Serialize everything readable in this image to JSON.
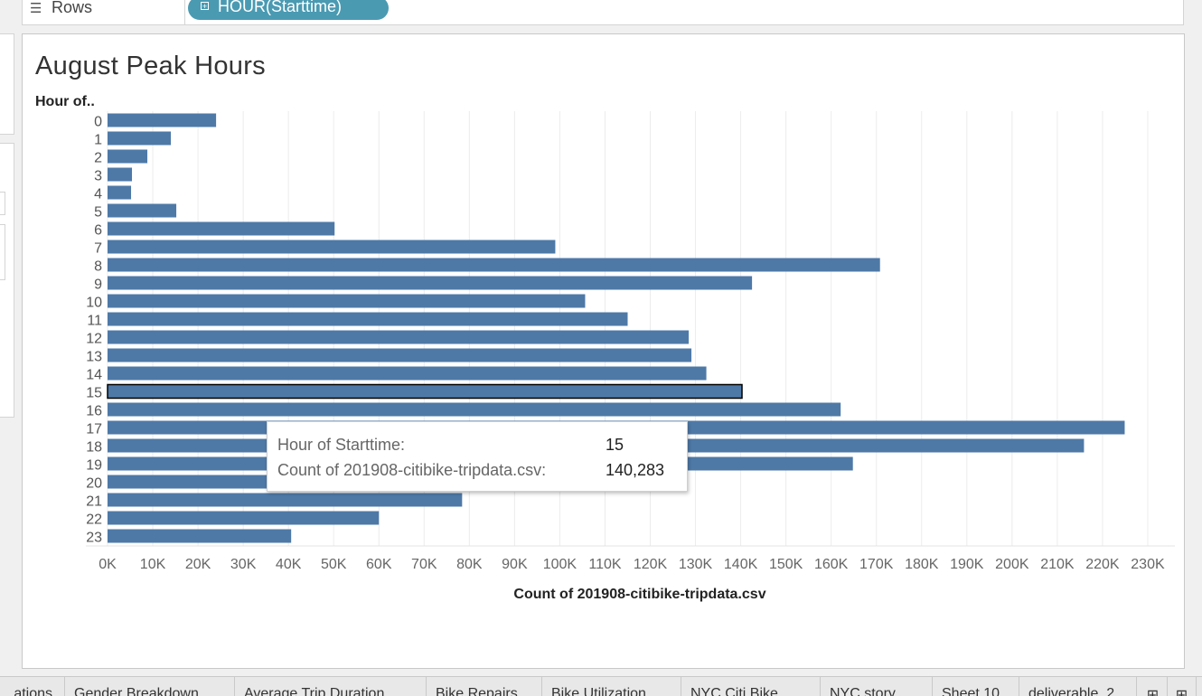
{
  "shelf": {
    "label": "Rows",
    "pill": "HOUR(Starttime)"
  },
  "chart_title": "August Peak Hours",
  "tooltip": {
    "row1_label": "Hour of Starttime:",
    "row1_value": "15",
    "row2_label": "Count of 201908-citibike-tripdata.csv:",
    "row2_value": "140,283"
  },
  "tabs": [
    "...ations",
    "Gender Breakdown",
    "Average Trip Duration",
    "Bike Repairs",
    "Bike Utilization",
    "NYC Citi Bike",
    "NYC story",
    "Sheet 10",
    "deliverable_2"
  ],
  "chart_data": {
    "type": "bar",
    "orientation": "horizontal",
    "title": "August Peak Hours",
    "ylabel": "Hour of..",
    "xlabel": "Count of 201908-citibike-tripdata.csv",
    "categories": [
      "0",
      "1",
      "2",
      "3",
      "4",
      "5",
      "6",
      "7",
      "8",
      "9",
      "10",
      "11",
      "12",
      "13",
      "14",
      "15",
      "16",
      "17",
      "18",
      "19",
      "20",
      "21",
      "22",
      "23"
    ],
    "values": [
      24000,
      14000,
      8800,
      5400,
      5200,
      15200,
      50200,
      99000,
      170800,
      142500,
      105600,
      115000,
      128500,
      129100,
      132400,
      140283,
      162100,
      224900,
      215900,
      164800,
      47000,
      78400,
      60000,
      40600
    ],
    "highlighted_category": "15",
    "xlim": [
      0,
      236000
    ],
    "xticks": [
      "0K",
      "10K",
      "20K",
      "30K",
      "40K",
      "50K",
      "60K",
      "70K",
      "80K",
      "90K",
      "100K",
      "110K",
      "120K",
      "130K",
      "140K",
      "150K",
      "160K",
      "170K",
      "180K",
      "190K",
      "200K",
      "210K",
      "220K",
      "230K"
    ],
    "grid": "vertical",
    "colors": {
      "bar": "#4e79a7",
      "highlight_border": "#000000"
    }
  }
}
